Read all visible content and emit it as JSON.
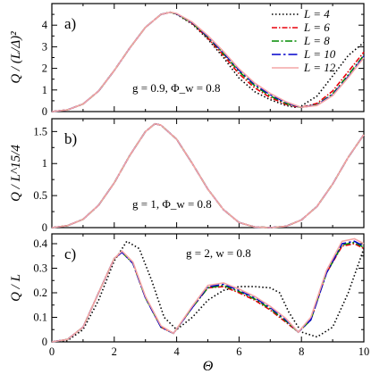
{
  "chart_data": [
    {
      "type": "line",
      "panel_label": "a)",
      "ylabel": "Q / (L/Δ)²",
      "annotation": "g = 0.9,  Φ_w = 0.8",
      "xlim": [
        0,
        10
      ],
      "ylim": [
        0,
        5
      ],
      "yticks": [
        0,
        1,
        2,
        3,
        4
      ],
      "legend": {
        "placement": "top-right",
        "entries": [
          "L = 4",
          "L = 6",
          "L = 8",
          "L = 10",
          "L = 12"
        ]
      },
      "series": [
        {
          "name": "L = 4",
          "color": "#000000",
          "dash": "1.5,2.5",
          "x": [
            0,
            0.5,
            1,
            1.5,
            2,
            2.5,
            3,
            3.5,
            3.8,
            4,
            4.5,
            5,
            5.5,
            6,
            6.5,
            7,
            7.5,
            7.8,
            8,
            8.5,
            9,
            9.5,
            10
          ],
          "y": [
            0,
            0.08,
            0.35,
            0.95,
            1.9,
            2.95,
            3.9,
            4.5,
            4.6,
            4.5,
            4.05,
            3.35,
            2.5,
            1.55,
            0.92,
            0.55,
            0.28,
            0.2,
            0.26,
            0.72,
            1.65,
            2.6,
            3.2
          ]
        },
        {
          "name": "L = 6",
          "color": "#e8000b",
          "dash": "6,2,1.5,2",
          "x": [
            0,
            0.5,
            1,
            1.5,
            2,
            2.5,
            3,
            3.5,
            3.8,
            4,
            4.5,
            5,
            5.5,
            6,
            6.5,
            7,
            7.5,
            7.8,
            8,
            8.5,
            9,
            9.5,
            10
          ],
          "y": [
            0,
            0.08,
            0.35,
            0.95,
            1.9,
            2.95,
            3.9,
            4.5,
            4.6,
            4.52,
            4.08,
            3.4,
            2.6,
            1.75,
            1.1,
            0.65,
            0.34,
            0.24,
            0.2,
            0.38,
            0.95,
            1.85,
            2.75
          ]
        },
        {
          "name": "L = 8",
          "color": "#008a00",
          "dash": "8,2.5,2,2.5",
          "x": [
            0,
            0.5,
            1,
            1.5,
            2,
            2.5,
            3,
            3.5,
            3.8,
            4,
            4.5,
            5,
            5.5,
            6,
            6.5,
            7,
            7.5,
            7.8,
            8,
            8.5,
            9,
            9.5,
            10
          ],
          "y": [
            0,
            0.08,
            0.35,
            0.95,
            1.9,
            2.95,
            3.9,
            4.5,
            4.6,
            4.52,
            4.1,
            3.45,
            2.68,
            1.85,
            1.2,
            0.72,
            0.38,
            0.26,
            0.2,
            0.32,
            0.82,
            1.7,
            2.6
          ]
        },
        {
          "name": "L = 10",
          "color": "#0000cc",
          "dash": "10,3,2.5,3",
          "x": [
            0,
            0.5,
            1,
            1.5,
            2,
            2.5,
            3,
            3.5,
            3.8,
            4,
            4.5,
            5,
            5.5,
            6,
            6.5,
            7,
            7.5,
            7.8,
            8,
            8.5,
            9,
            9.5,
            10
          ],
          "y": [
            0,
            0.08,
            0.35,
            0.95,
            1.9,
            2.95,
            3.9,
            4.5,
            4.6,
            4.53,
            4.12,
            3.48,
            2.72,
            1.92,
            1.26,
            0.78,
            0.42,
            0.28,
            0.2,
            0.3,
            0.78,
            1.62,
            2.55
          ]
        },
        {
          "name": "L = 12",
          "color": "#f4a6a6",
          "dash": "",
          "x": [
            0,
            0.5,
            1,
            1.5,
            2,
            2.5,
            3,
            3.5,
            3.8,
            4,
            4.5,
            5,
            5.5,
            6,
            6.5,
            7,
            7.5,
            7.8,
            8,
            8.5,
            9,
            9.5,
            10
          ],
          "y": [
            0,
            0.08,
            0.35,
            0.95,
            1.9,
            2.95,
            3.9,
            4.5,
            4.6,
            4.54,
            4.14,
            3.52,
            2.78,
            1.98,
            1.32,
            0.84,
            0.46,
            0.3,
            0.2,
            0.28,
            0.74,
            1.58,
            2.5
          ]
        }
      ]
    },
    {
      "type": "line",
      "panel_label": "b)",
      "ylabel": "Q / L^15/4",
      "annotation": "g = 1,  Φ_w = 0.8",
      "xlim": [
        0,
        10
      ],
      "ylim": [
        0,
        1.7
      ],
      "yticks": [
        0,
        0.5,
        1,
        1.5
      ],
      "series": [
        {
          "name": "L = 4",
          "color": "#000000",
          "dash": "1.5,2.5",
          "x": [
            0,
            0.5,
            1,
            1.5,
            2,
            2.5,
            3,
            3.3,
            3.5,
            4,
            4.5,
            5,
            5.5,
            6,
            6.5,
            7,
            7.5,
            8,
            8.5,
            9,
            9.5,
            10
          ],
          "y": [
            0,
            0.03,
            0.13,
            0.35,
            0.7,
            1.13,
            1.5,
            1.62,
            1.6,
            1.38,
            1.0,
            0.6,
            0.28,
            0.08,
            0.01,
            0.0,
            0.02,
            0.12,
            0.33,
            0.68,
            1.1,
            1.45
          ]
        },
        {
          "name": "L = 6",
          "color": "#e8000b",
          "dash": "6,2,1.5,2",
          "x": [
            0,
            0.5,
            1,
            1.5,
            2,
            2.5,
            3,
            3.3,
            3.5,
            4,
            4.5,
            5,
            5.5,
            6,
            6.5,
            7,
            7.5,
            8,
            8.5,
            9,
            9.5,
            10
          ],
          "y": [
            0,
            0.03,
            0.13,
            0.35,
            0.7,
            1.13,
            1.5,
            1.62,
            1.6,
            1.38,
            1.0,
            0.6,
            0.28,
            0.08,
            0.01,
            0.0,
            0.02,
            0.12,
            0.33,
            0.68,
            1.1,
            1.45
          ]
        },
        {
          "name": "L = 8",
          "color": "#008a00",
          "dash": "8,2.5,2,2.5",
          "x": [
            0,
            0.5,
            1,
            1.5,
            2,
            2.5,
            3,
            3.3,
            3.5,
            4,
            4.5,
            5,
            5.5,
            6,
            6.5,
            7,
            7.5,
            8,
            8.5,
            9,
            9.5,
            10
          ],
          "y": [
            0,
            0.03,
            0.13,
            0.35,
            0.7,
            1.13,
            1.5,
            1.62,
            1.6,
            1.38,
            1.0,
            0.6,
            0.28,
            0.08,
            0.01,
            0.0,
            0.02,
            0.12,
            0.33,
            0.68,
            1.1,
            1.45
          ]
        },
        {
          "name": "L = 10",
          "color": "#0000cc",
          "dash": "10,3,2.5,3",
          "x": [
            0,
            0.5,
            1,
            1.5,
            2,
            2.5,
            3,
            3.3,
            3.5,
            4,
            4.5,
            5,
            5.5,
            6,
            6.5,
            7,
            7.5,
            8,
            8.5,
            9,
            9.5,
            10
          ],
          "y": [
            0,
            0.03,
            0.13,
            0.35,
            0.7,
            1.13,
            1.5,
            1.62,
            1.6,
            1.38,
            1.0,
            0.6,
            0.28,
            0.08,
            0.01,
            0.0,
            0.02,
            0.12,
            0.33,
            0.68,
            1.1,
            1.45
          ]
        },
        {
          "name": "L = 12",
          "color": "#f4a6a6",
          "dash": "",
          "x": [
            0,
            0.5,
            1,
            1.5,
            2,
            2.5,
            3,
            3.3,
            3.5,
            4,
            4.5,
            5,
            5.5,
            6,
            6.5,
            7,
            7.5,
            8,
            8.5,
            9,
            9.5,
            10
          ],
          "y": [
            0,
            0.03,
            0.13,
            0.35,
            0.7,
            1.13,
            1.5,
            1.62,
            1.6,
            1.38,
            1.0,
            0.6,
            0.28,
            0.08,
            0.01,
            0.0,
            0.02,
            0.12,
            0.33,
            0.68,
            1.1,
            1.45
          ]
        }
      ]
    },
    {
      "type": "line",
      "panel_label": "c)",
      "ylabel": "Q / L",
      "annotation": "g = 2,  w = 0.8",
      "xlim": [
        0,
        10
      ],
      "ylim": [
        0,
        0.44
      ],
      "yticks": [
        0,
        0.1,
        0.2,
        0.3,
        0.4
      ],
      "xticks": [
        0,
        2,
        4,
        6,
        8,
        10
      ],
      "xlabel": "Θ",
      "series": [
        {
          "name": "L = 4",
          "color": "#000000",
          "dash": "1.5,2.5",
          "x": [
            0,
            0.5,
            1,
            1.5,
            2,
            2.4,
            2.8,
            3.2,
            3.6,
            4,
            4.5,
            5,
            5.5,
            6,
            6.5,
            7,
            7.3,
            7.6,
            8,
            8.5,
            9,
            9.5,
            10
          ],
          "y": [
            0,
            0.005,
            0.05,
            0.17,
            0.33,
            0.41,
            0.38,
            0.25,
            0.1,
            0.05,
            0.1,
            0.17,
            0.21,
            0.225,
            0.225,
            0.22,
            0.2,
            0.12,
            0.04,
            0.02,
            0.06,
            0.2,
            0.38
          ]
        },
        {
          "name": "L = 6",
          "color": "#e8000b",
          "dash": "6,2,1.5,2",
          "x": [
            0,
            0.5,
            1,
            1.5,
            2,
            2.25,
            2.6,
            3,
            3.5,
            3.9,
            4.5,
            5,
            5.5,
            6,
            6.5,
            7,
            7.5,
            7.9,
            8.3,
            8.8,
            9.3,
            9.7,
            10
          ],
          "y": [
            0,
            0.01,
            0.06,
            0.2,
            0.34,
            0.365,
            0.32,
            0.18,
            0.06,
            0.035,
            0.14,
            0.22,
            0.225,
            0.2,
            0.17,
            0.13,
            0.08,
            0.04,
            0.09,
            0.28,
            0.39,
            0.4,
            0.38
          ]
        },
        {
          "name": "L = 8",
          "color": "#008a00",
          "dash": "8,2.5,2,2.5",
          "x": [
            0,
            0.5,
            1,
            1.5,
            2,
            2.25,
            2.6,
            3,
            3.5,
            3.9,
            4.5,
            5,
            5.5,
            6,
            6.5,
            7,
            7.5,
            7.9,
            8.3,
            8.8,
            9.3,
            9.7,
            10
          ],
          "y": [
            0,
            0.01,
            0.06,
            0.2,
            0.34,
            0.365,
            0.32,
            0.18,
            0.06,
            0.035,
            0.14,
            0.22,
            0.23,
            0.205,
            0.175,
            0.135,
            0.085,
            0.04,
            0.09,
            0.28,
            0.395,
            0.405,
            0.385
          ]
        },
        {
          "name": "L = 10",
          "color": "#0000cc",
          "dash": "10,3,2.5,3",
          "x": [
            0,
            0.5,
            1,
            1.5,
            2,
            2.25,
            2.6,
            3,
            3.5,
            3.9,
            4.5,
            5,
            5.5,
            6,
            6.5,
            7,
            7.5,
            7.9,
            8.3,
            8.8,
            9.3,
            9.7,
            10
          ],
          "y": [
            0,
            0.01,
            0.06,
            0.2,
            0.34,
            0.365,
            0.32,
            0.18,
            0.06,
            0.035,
            0.14,
            0.225,
            0.235,
            0.21,
            0.18,
            0.14,
            0.09,
            0.04,
            0.09,
            0.28,
            0.4,
            0.41,
            0.39
          ]
        },
        {
          "name": "L = 12",
          "color": "#f4a6a6",
          "dash": "",
          "x": [
            0,
            0.5,
            1,
            1.5,
            2,
            2.25,
            2.6,
            3,
            3.5,
            3.9,
            4.5,
            5,
            5.5,
            6,
            6.5,
            7,
            7.5,
            7.9,
            8.3,
            8.8,
            9.3,
            9.7,
            10
          ],
          "y": [
            0,
            0.01,
            0.06,
            0.2,
            0.34,
            0.37,
            0.325,
            0.185,
            0.065,
            0.035,
            0.145,
            0.23,
            0.24,
            0.215,
            0.185,
            0.145,
            0.095,
            0.04,
            0.1,
            0.29,
            0.41,
            0.42,
            0.4
          ]
        }
      ]
    }
  ]
}
